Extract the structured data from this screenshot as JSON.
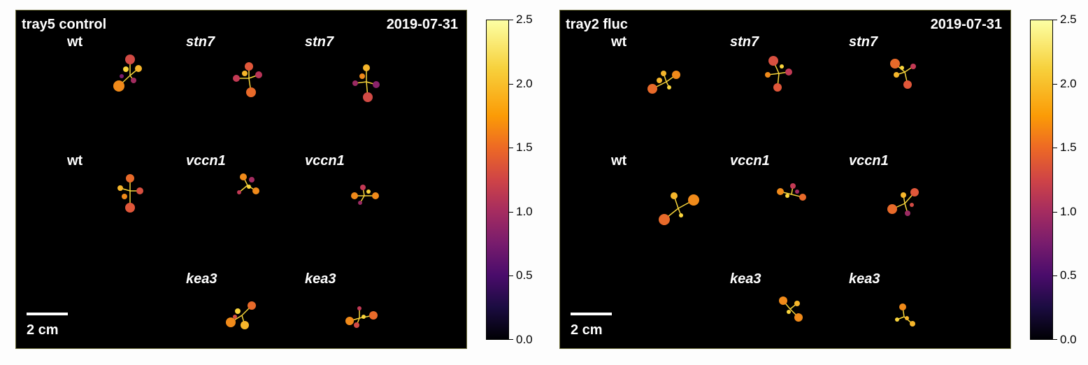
{
  "panels": [
    {
      "title": "tray5 control",
      "date": "2019-07-31",
      "scale_label": "2 cm",
      "labels": {
        "r1c1": "wt",
        "r1c2": "stn7",
        "r1c3": "stn7",
        "r2c1": "wt",
        "r2c2": "vccn1",
        "r2c3": "vccn1",
        "r3c2": "kea3",
        "r3c3": "kea3"
      }
    },
    {
      "title": "tray2 fluc",
      "date": "2019-07-31",
      "scale_label": "2 cm",
      "labels": {
        "r1c1": "wt",
        "r1c2": "stn7",
        "r1c3": "stn7",
        "r2c1": "wt",
        "r2c2": "vccn1",
        "r2c3": "vccn1",
        "r3c2": "kea3",
        "r3c3": "kea3"
      }
    }
  ],
  "colorbar": {
    "colormap": "inferno",
    "ticks": [
      "0.0",
      "0.5",
      "1.0",
      "1.5",
      "2.0",
      "2.5"
    ],
    "colors": {
      "low": "#000004",
      "mid": "#cf4446",
      "high": "#fcffa4"
    }
  }
}
